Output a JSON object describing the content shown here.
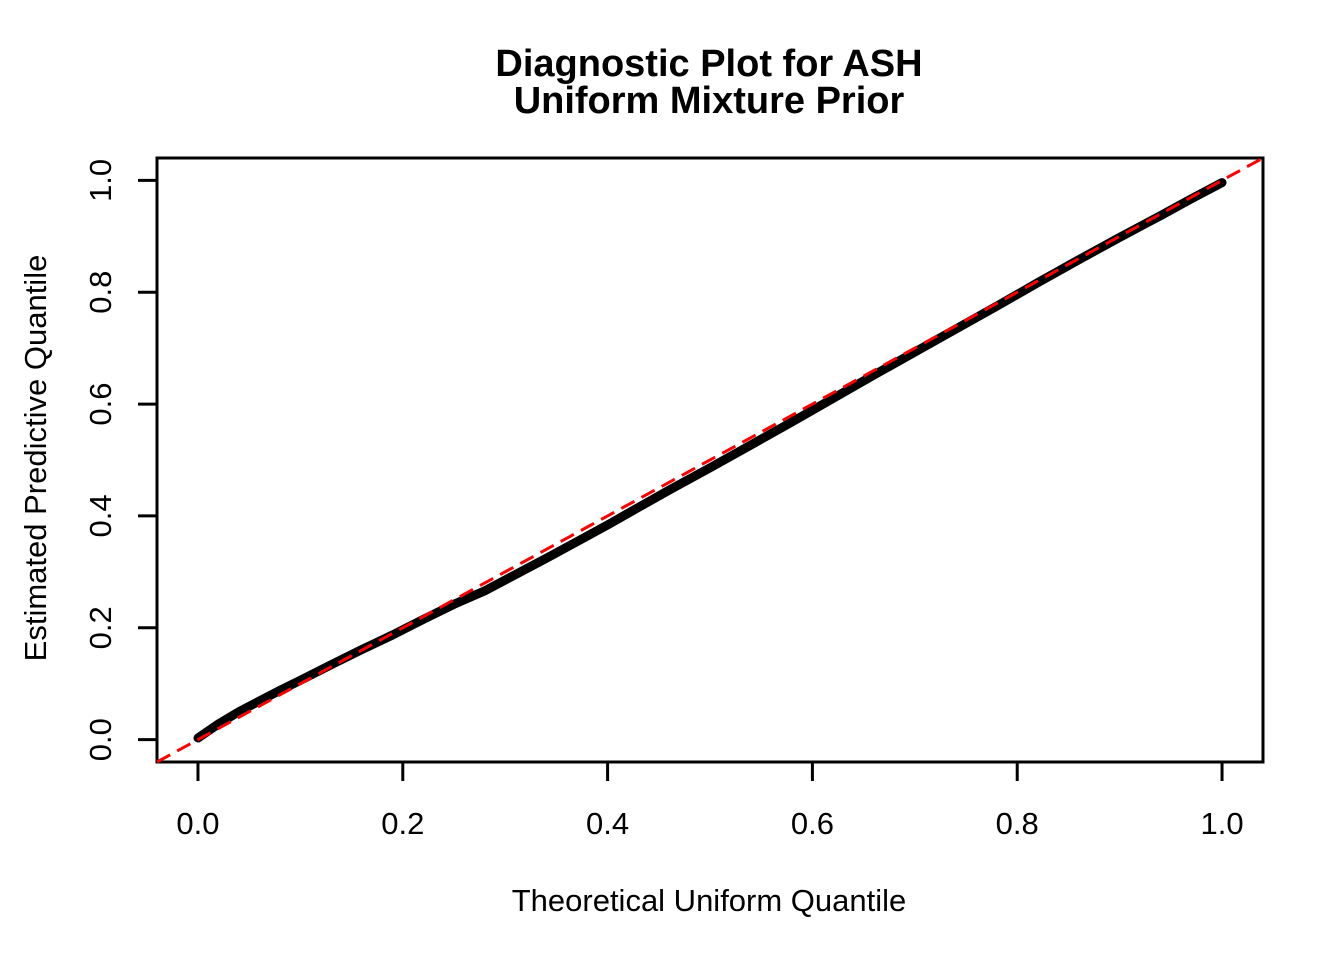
{
  "figure": {
    "title_line1": "Diagnostic Plot for ASH",
    "title_line2": "Uniform Mixture Prior",
    "background": "#FFFFFF"
  },
  "chart_data": {
    "type": "scatter",
    "title": "Diagnostic Plot for ASH\nUniform Mixture Prior",
    "xlabel": "Theoretical Uniform Quantile",
    "ylabel": "Estimated Predictive Quantile",
    "xlim": [
      -0.04,
      1.04
    ],
    "ylim": [
      -0.04,
      1.04
    ],
    "xticks": [
      0.0,
      0.2,
      0.4,
      0.6,
      0.8,
      1.0
    ],
    "yticks": [
      0.0,
      0.2,
      0.4,
      0.6,
      0.8,
      1.0
    ],
    "tick_decimals": 1,
    "grid": false,
    "legend": null,
    "axis_color": "#000000",
    "series": [
      {
        "name": "estimated-predictive-quantiles",
        "kind": "dense-point-curve",
        "color": "#000000",
        "points": [
          [
            0.0,
            0.003
          ],
          [
            0.02,
            0.028
          ],
          [
            0.04,
            0.05
          ],
          [
            0.06,
            0.069
          ],
          [
            0.08,
            0.088
          ],
          [
            0.1,
            0.106
          ],
          [
            0.13,
            0.134
          ],
          [
            0.16,
            0.161
          ],
          [
            0.19,
            0.187
          ],
          [
            0.22,
            0.215
          ],
          [
            0.25,
            0.242
          ],
          [
            0.28,
            0.266
          ],
          [
            0.31,
            0.295
          ],
          [
            0.34,
            0.324
          ],
          [
            0.37,
            0.354
          ],
          [
            0.4,
            0.384
          ],
          [
            0.43,
            0.415
          ],
          [
            0.46,
            0.446
          ],
          [
            0.5,
            0.486
          ],
          [
            0.54,
            0.527
          ],
          [
            0.58,
            0.568
          ],
          [
            0.62,
            0.61
          ],
          [
            0.66,
            0.652
          ],
          [
            0.7,
            0.693
          ],
          [
            0.74,
            0.734
          ],
          [
            0.78,
            0.775
          ],
          [
            0.82,
            0.817
          ],
          [
            0.86,
            0.858
          ],
          [
            0.9,
            0.898
          ],
          [
            0.94,
            0.937
          ],
          [
            0.97,
            0.967
          ],
          [
            1.0,
            0.996
          ]
        ]
      },
      {
        "name": "identity-reference-line",
        "kind": "dashed-line",
        "color": "#FF0000",
        "points": [
          [
            -0.04,
            -0.04
          ],
          [
            1.04,
            1.04
          ]
        ]
      }
    ]
  }
}
